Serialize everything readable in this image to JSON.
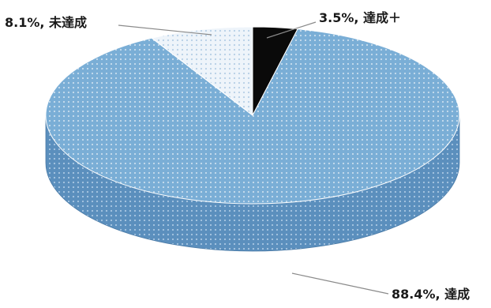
{
  "chart_data": {
    "type": "pie",
    "title": "",
    "style": "3d",
    "slices": [
      {
        "label": "3.5%, 達成＋",
        "value": 3.5,
        "color": "#0a0a0a"
      },
      {
        "label": "88.4%, 達成",
        "value": 88.4,
        "color": "#7aaed6"
      },
      {
        "label": "8.1%, 未達成",
        "value": 8.1,
        "color": "#dde9f4"
      }
    ]
  }
}
